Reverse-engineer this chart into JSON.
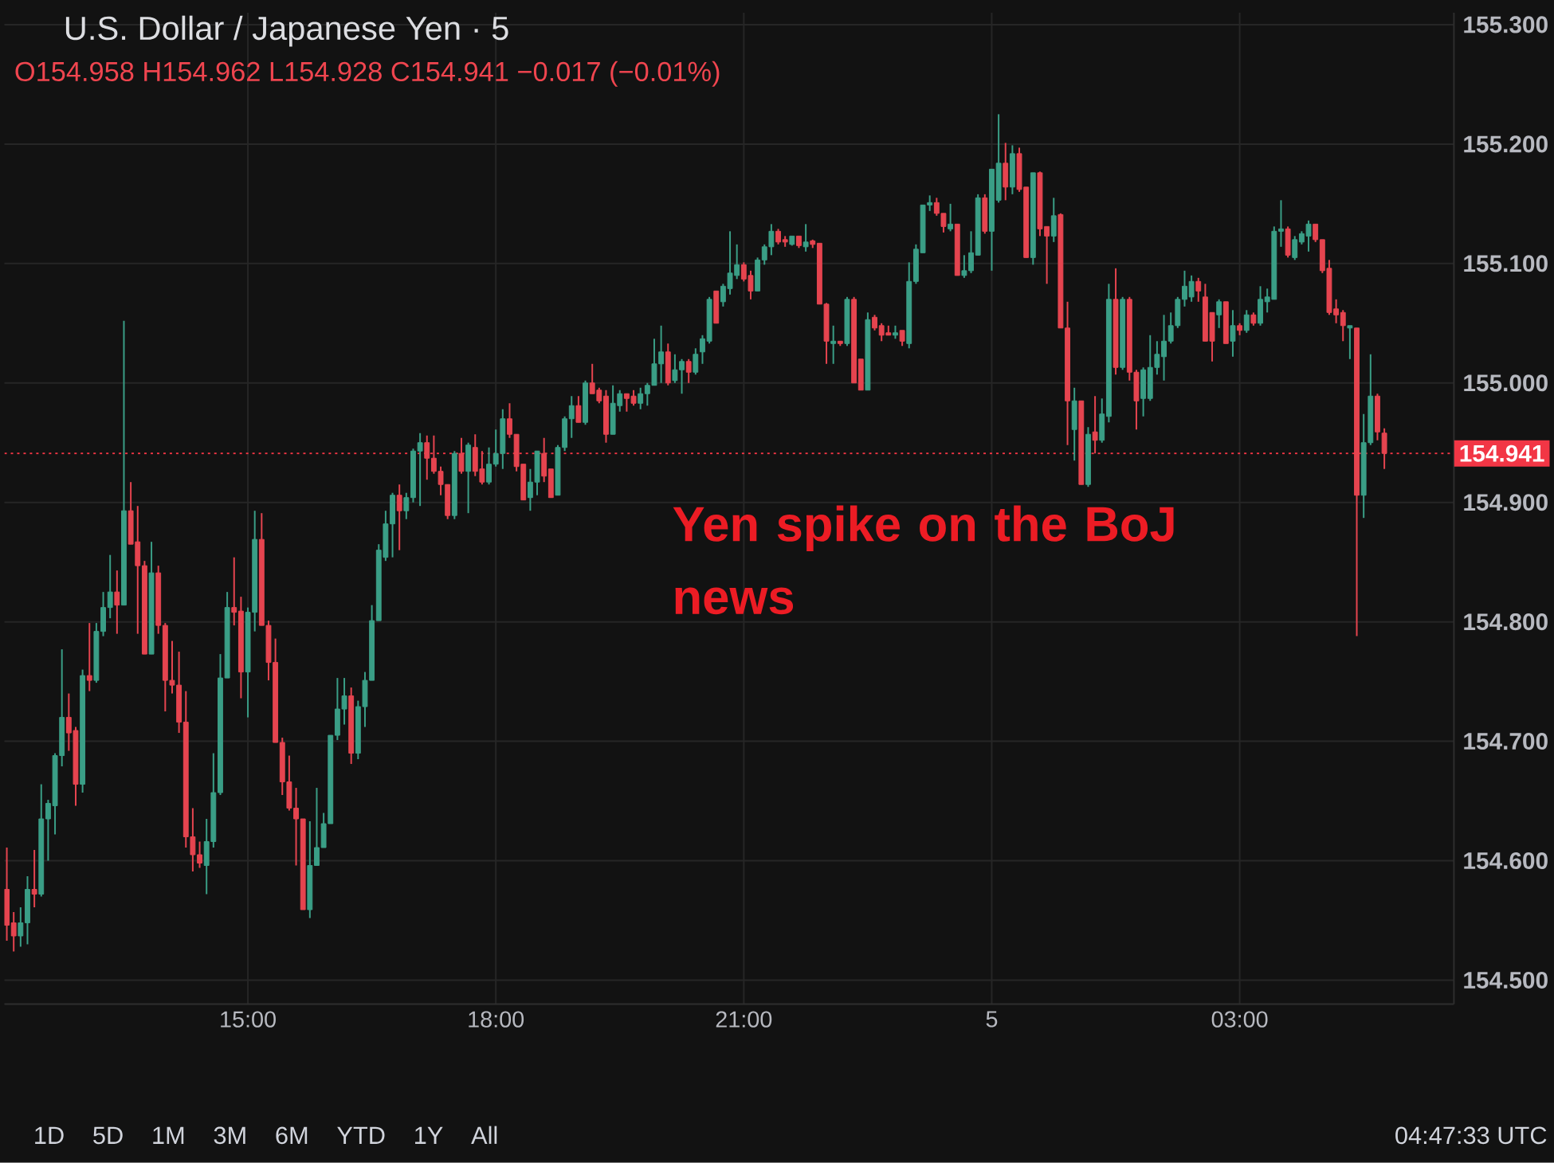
{
  "chart_data": {
    "type": "candlestick",
    "title": "U.S. Dollar / Japanese Yen · 5",
    "subtitle": "O154.958 H154.962 L154.928 C154.941 −0.017 (−0.01%)",
    "categories": [
      null,
      null,
      null,
      null,
      null,
      null,
      null,
      null,
      null,
      null,
      null,
      null,
      null,
      null,
      null,
      null,
      null,
      null,
      null,
      null,
      null,
      null,
      null,
      null,
      null,
      null,
      null,
      null,
      null,
      null,
      null,
      null,
      null,
      null,
      null,
      "15:00",
      null,
      null,
      null,
      null,
      null,
      null,
      null,
      null,
      null,
      null,
      null,
      null,
      null,
      null,
      null,
      null,
      null,
      null,
      null,
      null,
      null,
      null,
      null,
      null,
      null,
      null,
      null,
      null,
      null,
      null,
      null,
      null,
      null,
      null,
      null,
      "18:00",
      null,
      null,
      null,
      null,
      null,
      null,
      null,
      null,
      null,
      null,
      null,
      null,
      null,
      null,
      null,
      null,
      null,
      null,
      null,
      null,
      null,
      null,
      null,
      null,
      null,
      null,
      null,
      null,
      null,
      null,
      null,
      null,
      null,
      null,
      null,
      "21:00",
      null,
      null,
      null,
      null,
      null,
      null,
      null,
      null,
      null,
      null,
      null,
      null,
      null,
      null,
      null,
      null,
      null,
      null,
      null,
      null,
      null,
      null,
      null,
      null,
      null,
      null,
      null,
      null,
      null,
      null,
      null,
      null,
      null,
      null,
      null,
      "5",
      null,
      null,
      null,
      null,
      null,
      null,
      null,
      null,
      null,
      null,
      null,
      null,
      null,
      null,
      null,
      null,
      null,
      null,
      null,
      null,
      null,
      null,
      null,
      null,
      null,
      null,
      null,
      null,
      null,
      null,
      null,
      null,
      null,
      null,
      null,
      "03:00",
      null,
      null,
      null,
      null,
      null,
      null,
      null,
      null,
      null,
      null,
      null,
      null,
      null,
      null,
      null,
      null,
      null,
      null,
      null,
      null,
      null
    ],
    "ohlc": [
      [
        154.576,
        154.611,
        154.533,
        154.546
      ],
      [
        154.548,
        154.557,
        154.524,
        154.537
      ],
      [
        154.537,
        154.561,
        154.528,
        154.548
      ],
      [
        154.548,
        154.587,
        154.53,
        154.576
      ],
      [
        154.576,
        154.609,
        154.561,
        154.572
      ],
      [
        154.572,
        154.664,
        154.57,
        154.635
      ],
      [
        154.635,
        154.651,
        154.6,
        154.648
      ],
      [
        154.646,
        154.69,
        154.622,
        154.688
      ],
      [
        154.688,
        154.777,
        154.679,
        154.72
      ],
      [
        154.72,
        154.74,
        154.692,
        154.707
      ],
      [
        154.709,
        154.712,
        154.646,
        154.664
      ],
      [
        154.664,
        154.76,
        154.657,
        154.755
      ],
      [
        154.755,
        154.799,
        154.742,
        154.751
      ],
      [
        154.751,
        154.799,
        154.749,
        154.792
      ],
      [
        154.792,
        154.825,
        154.788,
        154.812
      ],
      [
        154.812,
        154.856,
        154.803,
        154.825
      ],
      [
        154.825,
        154.843,
        154.79,
        154.814
      ],
      [
        154.814,
        155.052,
        154.814,
        154.893
      ],
      [
        154.893,
        154.917,
        154.865,
        154.865
      ],
      [
        154.867,
        154.897,
        154.79,
        154.847
      ],
      [
        154.847,
        154.851,
        154.773,
        154.773
      ],
      [
        154.773,
        154.867,
        154.773,
        154.841
      ],
      [
        154.841,
        154.847,
        154.79,
        154.797
      ],
      [
        154.797,
        154.799,
        154.725,
        154.751
      ],
      [
        154.751,
        154.784,
        154.74,
        154.747
      ],
      [
        154.747,
        154.775,
        154.707,
        154.716
      ],
      [
        154.716,
        154.742,
        154.611,
        154.62
      ],
      [
        154.62,
        154.644,
        154.591,
        154.605
      ],
      [
        154.605,
        154.616,
        154.594,
        154.598
      ],
      [
        154.596,
        154.635,
        154.572,
        154.616
      ],
      [
        154.616,
        154.69,
        154.611,
        154.657
      ],
      [
        154.657,
        154.773,
        154.655,
        154.753
      ],
      [
        154.753,
        154.825,
        154.753,
        154.812
      ],
      [
        154.812,
        154.854,
        154.797,
        154.808
      ],
      [
        154.809,
        154.821,
        154.736,
        154.758
      ],
      [
        154.758,
        154.812,
        154.72,
        154.808
      ],
      [
        154.808,
        154.893,
        154.792,
        154.869
      ],
      [
        154.869,
        154.891,
        154.797,
        154.797
      ],
      [
        154.797,
        154.801,
        154.751,
        154.766
      ],
      [
        154.766,
        154.786,
        154.699,
        154.699
      ],
      [
        154.699,
        154.703,
        154.655,
        154.666
      ],
      [
        154.666,
        154.688,
        154.642,
        154.644
      ],
      [
        154.644,
        154.661,
        154.596,
        154.635
      ],
      [
        154.635,
        154.635,
        154.559,
        154.559
      ],
      [
        154.559,
        154.633,
        154.552,
        154.596
      ],
      [
        154.596,
        154.661,
        154.596,
        154.611
      ],
      [
        154.611,
        154.64,
        154.611,
        154.631
      ],
      [
        154.631,
        154.705,
        154.631,
        154.705
      ],
      [
        154.705,
        154.753,
        154.701,
        154.727
      ],
      [
        154.727,
        154.753,
        154.714,
        154.738
      ],
      [
        154.738,
        154.745,
        154.681,
        154.69
      ],
      [
        154.69,
        154.734,
        154.685,
        154.729
      ],
      [
        154.729,
        154.758,
        154.712,
        154.751
      ],
      [
        154.751,
        154.814,
        154.751,
        154.801
      ],
      [
        154.801,
        154.865,
        154.801,
        154.86
      ],
      [
        154.854,
        154.893,
        154.851,
        154.882
      ],
      [
        154.882,
        154.908,
        154.854,
        154.906
      ],
      [
        154.906,
        154.915,
        154.86,
        154.893
      ],
      [
        154.893,
        154.908,
        154.886,
        154.904
      ],
      [
        154.904,
        154.945,
        154.9,
        154.943
      ],
      [
        154.943,
        154.958,
        154.897,
        154.95
      ],
      [
        154.95,
        154.956,
        154.919,
        154.937
      ],
      [
        154.937,
        154.956,
        154.924,
        154.926
      ],
      [
        154.926,
        154.93,
        154.906,
        154.915
      ],
      [
        154.915,
        154.915,
        154.886,
        154.889
      ],
      [
        154.889,
        154.943,
        154.886,
        154.941
      ],
      [
        154.941,
        154.954,
        154.924,
        154.926
      ],
      [
        154.926,
        154.95,
        154.891,
        154.948
      ],
      [
        154.946,
        154.957,
        154.922,
        154.926
      ],
      [
        154.928,
        154.943,
        154.915,
        154.917
      ],
      [
        154.917,
        154.946,
        154.915,
        154.932
      ],
      [
        154.932,
        154.961,
        154.93,
        154.941
      ],
      [
        154.941,
        154.978,
        154.928,
        154.97
      ],
      [
        154.97,
        154.983,
        154.954,
        154.957
      ],
      [
        154.957,
        154.957,
        154.926,
        154.93
      ],
      [
        154.932,
        154.932,
        154.902,
        154.902
      ],
      [
        154.904,
        154.928,
        154.893,
        154.917
      ],
      [
        154.917,
        154.943,
        154.906,
        154.943
      ],
      [
        154.941,
        154.954,
        154.917,
        154.922
      ],
      [
        154.928,
        154.928,
        154.904,
        154.904
      ],
      [
        154.906,
        154.948,
        154.906,
        154.946
      ],
      [
        154.946,
        154.972,
        154.943,
        154.97
      ],
      [
        154.97,
        154.989,
        154.954,
        154.981
      ],
      [
        154.981,
        154.989,
        154.967,
        154.967
      ],
      [
        154.967,
        155.002,
        154.965,
        155.0
      ],
      [
        155.0,
        155.016,
        154.991,
        154.991
      ],
      [
        154.994,
        154.996,
        154.983,
        154.985
      ],
      [
        154.989,
        154.994,
        154.95,
        154.957
      ],
      [
        154.957,
        154.998,
        154.957,
        154.983
      ],
      [
        154.981,
        154.994,
        154.976,
        154.991
      ],
      [
        154.991,
        154.991,
        154.976,
        154.987
      ],
      [
        154.989,
        154.994,
        154.981,
        154.983
      ],
      [
        154.983,
        154.996,
        154.978,
        154.991
      ],
      [
        154.991,
        155.0,
        154.981,
        154.998
      ],
      [
        154.998,
        155.037,
        154.998,
        155.016
      ],
      [
        155.016,
        155.048,
        155.0,
        155.026
      ],
      [
        155.026,
        155.033,
        154.998,
        155.0
      ],
      [
        155.002,
        155.024,
        155.0,
        155.011
      ],
      [
        155.011,
        155.02,
        154.991,
        155.018
      ],
      [
        155.018,
        155.02,
        155.0,
        155.009
      ],
      [
        155.009,
        155.029,
        155.007,
        155.024
      ],
      [
        155.026,
        155.04,
        155.016,
        155.037
      ],
      [
        155.035,
        155.072,
        155.033,
        155.07
      ],
      [
        155.077,
        155.077,
        155.05,
        155.05
      ],
      [
        155.068,
        155.083,
        155.064,
        155.081
      ],
      [
        155.079,
        155.127,
        155.074,
        155.092
      ],
      [
        155.09,
        155.116,
        155.087,
        155.099
      ],
      [
        155.099,
        155.101,
        155.085,
        155.087
      ],
      [
        155.09,
        155.094,
        155.07,
        155.077
      ],
      [
        155.077,
        155.105,
        155.077,
        155.103
      ],
      [
        155.103,
        155.116,
        155.099,
        155.114
      ],
      [
        155.114,
        155.133,
        155.107,
        155.127
      ],
      [
        155.127,
        155.129,
        155.116,
        155.118
      ],
      [
        155.12,
        155.123,
        155.114,
        155.118
      ],
      [
        155.116,
        155.123,
        155.115,
        155.123
      ],
      [
        155.123,
        155.123,
        155.113,
        155.115
      ],
      [
        155.114,
        155.133,
        155.11,
        155.118
      ],
      [
        155.119,
        155.12,
        155.113,
        155.116
      ],
      [
        155.117,
        155.117,
        155.066,
        155.066
      ],
      [
        155.066,
        155.067,
        155.016,
        155.035
      ],
      [
        155.033,
        155.048,
        155.016,
        155.035
      ],
      [
        155.035,
        155.035,
        155.031,
        155.033
      ],
      [
        155.033,
        155.072,
        155.031,
        155.07
      ],
      [
        155.07,
        155.072,
        155.0,
        155.0
      ],
      [
        155.02,
        155.02,
        154.994,
        154.994
      ],
      [
        154.994,
        155.059,
        154.994,
        155.053
      ],
      [
        155.055,
        155.057,
        155.044,
        155.046
      ],
      [
        155.048,
        155.05,
        155.035,
        155.04
      ],
      [
        155.042,
        155.048,
        155.04,
        155.04
      ],
      [
        155.04,
        155.048,
        155.037,
        155.042
      ],
      [
        155.044,
        155.044,
        155.031,
        155.035
      ],
      [
        155.033,
        155.101,
        155.029,
        155.085
      ],
      [
        155.085,
        155.116,
        155.083,
        155.112
      ],
      [
        155.109,
        155.149,
        155.109,
        155.149
      ],
      [
        155.149,
        155.157,
        155.144,
        155.151
      ],
      [
        155.151,
        155.155,
        155.14,
        155.142
      ],
      [
        155.142,
        155.142,
        155.126,
        155.131
      ],
      [
        155.129,
        155.15,
        155.127,
        155.133
      ],
      [
        155.133,
        155.133,
        155.09,
        155.09
      ],
      [
        155.09,
        155.107,
        155.088,
        155.094
      ],
      [
        155.094,
        155.127,
        155.092,
        155.109
      ],
      [
        155.107,
        155.158,
        155.107,
        155.155
      ],
      [
        155.155,
        155.158,
        155.125,
        155.127
      ],
      [
        155.127,
        155.179,
        155.094,
        155.179
      ],
      [
        155.153,
        155.225,
        155.151,
        155.184
      ],
      [
        155.184,
        155.201,
        155.153,
        155.164
      ],
      [
        155.164,
        155.199,
        155.158,
        155.192
      ],
      [
        155.192,
        155.197,
        155.16,
        155.162
      ],
      [
        155.164,
        155.164,
        155.105,
        155.105
      ],
      [
        155.105,
        155.176,
        155.099,
        155.176
      ],
      [
        155.176,
        155.177,
        155.123,
        155.129
      ],
      [
        155.131,
        155.131,
        155.083,
        155.123
      ],
      [
        155.123,
        155.155,
        155.118,
        155.14
      ],
      [
        155.141,
        155.142,
        155.046,
        155.046
      ],
      [
        155.046,
        155.068,
        154.948,
        154.985
      ],
      [
        154.961,
        154.996,
        154.935,
        154.985
      ],
      [
        154.985,
        154.985,
        154.915,
        154.915
      ],
      [
        154.915,
        154.963,
        154.913,
        154.957
      ],
      [
        154.959,
        154.989,
        154.941,
        154.952
      ],
      [
        154.952,
        154.987,
        154.95,
        154.974
      ],
      [
        154.972,
        155.083,
        154.967,
        155.07
      ],
      [
        155.07,
        155.096,
        155.007,
        155.013
      ],
      [
        155.013,
        155.072,
        155.011,
        155.07
      ],
      [
        155.07,
        155.072,
        155.002,
        155.009
      ],
      [
        155.009,
        155.011,
        154.961,
        154.985
      ],
      [
        154.987,
        155.013,
        154.972,
        155.011
      ],
      [
        154.987,
        155.04,
        154.985,
        155.013
      ],
      [
        155.013,
        155.035,
        155.007,
        155.024
      ],
      [
        155.022,
        155.057,
        155.002,
        155.035
      ],
      [
        155.035,
        155.059,
        155.033,
        155.048
      ],
      [
        155.048,
        155.072,
        155.046,
        155.07
      ],
      [
        155.07,
        155.094,
        155.064,
        155.081
      ],
      [
        155.072,
        155.09,
        155.068,
        155.085
      ],
      [
        155.085,
        155.088,
        155.068,
        155.077
      ],
      [
        155.072,
        155.083,
        155.035,
        155.035
      ],
      [
        155.059,
        155.059,
        155.018,
        155.035
      ],
      [
        155.057,
        155.07,
        155.046,
        155.068
      ],
      [
        155.068,
        155.068,
        155.033,
        155.033
      ],
      [
        155.035,
        155.061,
        155.022,
        155.048
      ],
      [
        155.048,
        155.05,
        155.04,
        155.044
      ],
      [
        155.044,
        155.061,
        155.042,
        155.057
      ],
      [
        155.057,
        155.059,
        155.048,
        155.05
      ],
      [
        155.05,
        155.081,
        155.048,
        155.07
      ],
      [
        155.068,
        155.079,
        155.059,
        155.072
      ],
      [
        155.07,
        155.131,
        155.07,
        155.127
      ],
      [
        155.127,
        155.153,
        155.114,
        155.129
      ],
      [
        155.129,
        155.131,
        155.105,
        155.107
      ],
      [
        155.105,
        155.123,
        155.103,
        155.12
      ],
      [
        155.118,
        155.127,
        155.116,
        155.125
      ],
      [
        155.123,
        155.136,
        155.11,
        155.133
      ],
      [
        155.133,
        155.133,
        155.118,
        155.12
      ],
      [
        155.12,
        155.12,
        155.092,
        155.094
      ],
      [
        155.096,
        155.103,
        155.057,
        155.059
      ],
      [
        155.062,
        155.07,
        155.05,
        155.057
      ],
      [
        155.059,
        155.061,
        155.035,
        155.048
      ],
      [
        155.046,
        155.048,
        155.02,
        155.048
      ],
      [
        155.046,
        155.046,
        154.788,
        154.906
      ],
      [
        154.906,
        154.974,
        154.887,
        154.95
      ],
      [
        154.95,
        155.024,
        154.948,
        154.989
      ],
      [
        154.989,
        154.991,
        154.952,
        154.959
      ],
      [
        154.958,
        154.962,
        154.928,
        154.941
      ]
    ],
    "colors": [
      "#e5444f",
      "#e5444f",
      "#3a9e86",
      "#3a9e86",
      "#e5444f",
      "#3a9e86",
      "#3a9e86",
      "#3a9e86",
      "#3a9e86",
      "#e5444f",
      "#e5444f",
      "#3a9e86",
      "#e5444f",
      "#3a9e86",
      "#3a9e86",
      "#3a9e86",
      "#e5444f",
      "#3a9e86",
      "#e5444f",
      "#e5444f",
      "#e5444f",
      "#3a9e86",
      "#e5444f",
      "#e5444f",
      "#e5444f",
      "#e5444f",
      "#e5444f",
      "#e5444f",
      "#e5444f",
      "#3a9e86",
      "#3a9e86",
      "#3a9e86",
      "#3a9e86",
      "#e5444f",
      "#e5444f",
      "#3a9e86",
      "#3a9e86",
      "#e5444f",
      "#e5444f",
      "#e5444f",
      "#e5444f",
      "#e5444f",
      "#e5444f",
      "#e5444f",
      "#3a9e86",
      "#3a9e86",
      "#3a9e86",
      "#3a9e86",
      "#3a9e86",
      "#3a9e86",
      "#e5444f",
      "#3a9e86",
      "#3a9e86",
      "#3a9e86",
      "#3a9e86",
      "#3a9e86",
      "#3a9e86",
      "#e5444f",
      "#3a9e86",
      "#3a9e86",
      "#3a9e86",
      "#e5444f",
      "#e5444f",
      "#e5444f",
      "#e5444f",
      "#3a9e86",
      "#e5444f",
      "#3a9e86",
      "#e5444f",
      "#e5444f",
      "#3a9e86",
      "#3a9e86",
      "#3a9e86",
      "#e5444f",
      "#e5444f",
      "#e5444f",
      "#3a9e86",
      "#3a9e86",
      "#e5444f",
      "#e5444f",
      "#3a9e86",
      "#3a9e86",
      "#3a9e86",
      "#e5444f",
      "#3a9e86",
      "#e5444f",
      "#e5444f",
      "#e5444f",
      "#3a9e86",
      "#3a9e86",
      "#e5444f",
      "#e5444f",
      "#3a9e86",
      "#3a9e86",
      "#3a9e86",
      "#3a9e86",
      "#e5444f",
      "#3a9e86",
      "#3a9e86",
      "#e5444f",
      "#3a9e86",
      "#3a9e86",
      "#3a9e86",
      "#e5444f",
      "#3a9e86",
      "#3a9e86",
      "#3a9e86",
      "#e5444f",
      "#e5444f",
      "#3a9e86",
      "#3a9e86",
      "#3a9e86",
      "#e5444f",
      "#e5444f",
      "#3a9e86",
      "#e5444f",
      "#3a9e86",
      "#e5444f",
      "#e5444f",
      "#e5444f",
      "#3a9e86",
      "#e5444f",
      "#3a9e86",
      "#e5444f",
      "#e5444f",
      "#3a9e86",
      "#e5444f",
      "#e5444f",
      "#e5444f",
      "#3a9e86",
      "#e5444f",
      "#3a9e86",
      "#3a9e86",
      "#3a9e86",
      "#3a9e86",
      "#e5444f",
      "#e5444f",
      "#3a9e86",
      "#e5444f",
      "#3a9e86",
      "#3a9e86",
      "#3a9e86",
      "#e5444f",
      "#3a9e86",
      "#3a9e86",
      "#e5444f",
      "#3a9e86",
      "#e5444f",
      "#e5444f",
      "#3a9e86",
      "#e5444f",
      "#e5444f",
      "#3a9e86",
      "#e5444f",
      "#e5444f",
      "#3a9e86",
      "#e5444f",
      "#3a9e86",
      "#e5444f",
      "#3a9e86",
      "#3a9e86",
      "#e5444f",
      "#3a9e86",
      "#e5444f",
      "#e5444f",
      "#3a9e86",
      "#3a9e86",
      "#3a9e86",
      "#3a9e86",
      "#3a9e86",
      "#3a9e86",
      "#3a9e86",
      "#3a9e86",
      "#e5444f",
      "#e5444f",
      "#e5444f",
      "#3a9e86",
      "#e5444f",
      "#3a9e86",
      "#e5444f",
      "#3a9e86",
      "#e5444f",
      "#3a9e86",
      "#3a9e86",
      "#3a9e86",
      "#3a9e86",
      "#e5444f",
      "#3a9e86",
      "#3a9e86",
      "#3a9e86",
      "#e5444f",
      "#e5444f",
      "#e5444f",
      "#e5444f",
      "#e5444f",
      "#3a9e86",
      "#e5444f",
      "#3a9e86",
      "#3a9e86",
      "#e5444f",
      "#e5444f"
    ],
    "ylim": [
      154.48,
      155.31
    ],
    "yticks": [
      {
        "value": 154.5,
        "label": "154.500"
      },
      {
        "value": 154.6,
        "label": "154.600"
      },
      {
        "value": 154.7,
        "label": "154.700"
      },
      {
        "value": 154.8,
        "label": "154.800"
      },
      {
        "value": 154.9,
        "label": "154.900"
      },
      {
        "value": 155.0,
        "label": "155.000"
      },
      {
        "value": 155.1,
        "label": "155.100"
      },
      {
        "value": 155.2,
        "label": "155.200"
      },
      {
        "value": 155.3,
        "label": "155.300"
      }
    ],
    "grid": true,
    "ref_lines": [
      {
        "axis": "y",
        "value": 154.941,
        "label": "154.941",
        "color": "#f23645",
        "line_style": "dotted"
      }
    ],
    "annotations": [
      "Yen spike on the BoJ news",
      "1D",
      "5D",
      "1M",
      "3M",
      "6M",
      "YTD",
      "1Y",
      "All",
      "04:47:33 UTC"
    ]
  }
}
